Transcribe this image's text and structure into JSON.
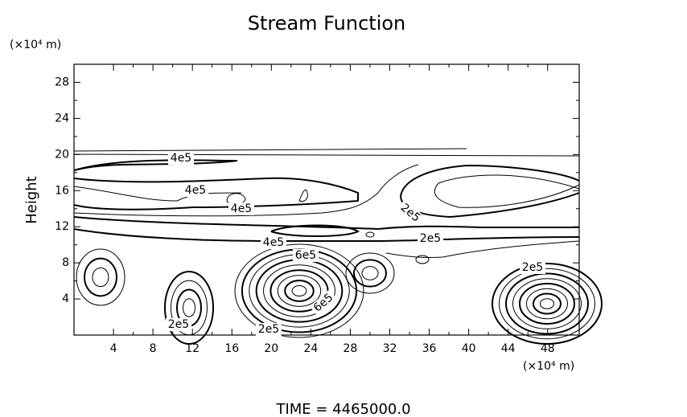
{
  "chart_data": {
    "type": "contour",
    "title": "Stream Function",
    "y_unit": "(×10⁴ m)",
    "x_unit": "(×10⁴ m)",
    "y_label": "Height",
    "footer": "TIME  =  4465000.0",
    "xlim": [
      0,
      51.2
    ],
    "ylim": [
      0,
      30
    ],
    "xticks": [
      4,
      8,
      12,
      16,
      20,
      24,
      28,
      32,
      36,
      40,
      44,
      48
    ],
    "yticks": [
      4,
      8,
      12,
      16,
      20,
      24,
      28
    ],
    "contour_labels": [
      {
        "value": 400000,
        "label": "4e5"
      },
      {
        "value": 400000,
        "label": "4e5"
      },
      {
        "value": 400000,
        "label": "4e5"
      },
      {
        "value": 400000,
        "label": "4e5"
      },
      {
        "value": 600000,
        "label": "6e5"
      },
      {
        "value": 600000,
        "label": "6e5"
      },
      {
        "value": 200000,
        "label": "2e5"
      },
      {
        "value": 200000,
        "label": "2e5"
      },
      {
        "value": 200000,
        "label": "2e5"
      },
      {
        "value": 200000,
        "label": "2e5"
      },
      {
        "value": 200000,
        "label": "2e5"
      }
    ]
  }
}
